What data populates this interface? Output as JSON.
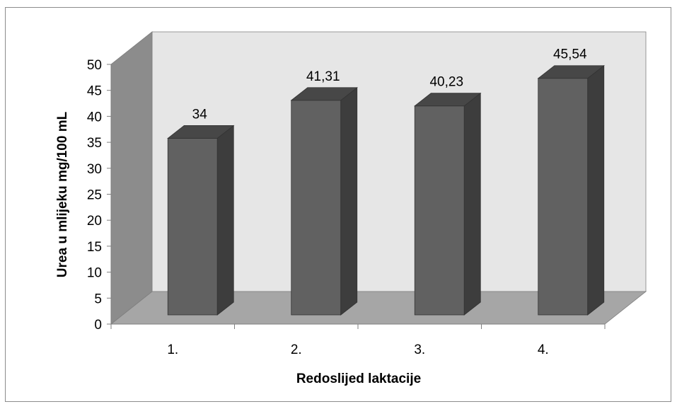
{
  "chart_data": {
    "type": "bar",
    "categories": [
      "1.",
      "2.",
      "3.",
      "4."
    ],
    "values": [
      34,
      41.31,
      40.23,
      45.54
    ],
    "data_labels": [
      "34",
      "41,31",
      "40,23",
      "45,54"
    ],
    "title": "",
    "xlabel": "Redoslijed laktacije",
    "ylabel": "Urea u mlijeku mg/100 mL",
    "ylim": [
      0,
      50
    ],
    "yticks": [
      "0",
      "5",
      "10",
      "15",
      "20",
      "25",
      "30",
      "35",
      "40",
      "45",
      "50"
    ],
    "grid": false,
    "legend": "none",
    "style": "3d-column",
    "colors": {
      "bar_front": "#616161",
      "bar_side": "#3d3d3d",
      "bar_top": "#474747",
      "back_wall": "#e6e6e6",
      "side_wall": "#8c8c8c",
      "floor": "#a6a6a6"
    }
  }
}
